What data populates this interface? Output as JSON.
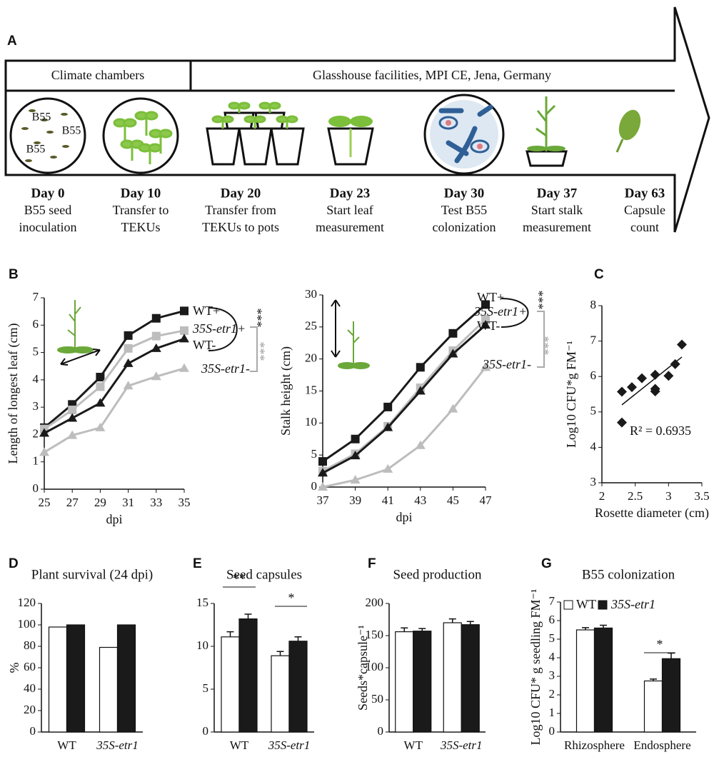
{
  "timeline": {
    "panel": "A",
    "phases": [
      "Climate chambers",
      "Glasshouse facilities, MPI CE, Jena, Germany"
    ],
    "seed_labels": [
      "B55",
      "B55",
      "B55"
    ],
    "steps": [
      {
        "day": "Day 0",
        "text": [
          "B55 seed",
          "inoculation"
        ]
      },
      {
        "day": "Day 10",
        "text": [
          "Transfer to",
          "TEKUs"
        ]
      },
      {
        "day": "Day 20",
        "text": [
          "Transfer from",
          "TEKUs to pots"
        ]
      },
      {
        "day": "Day 23",
        "text": [
          "Start leaf",
          "measurement"
        ]
      },
      {
        "day": "Day 30",
        "text": [
          "Test B55",
          "colonization"
        ]
      },
      {
        "day": "Day 37",
        "text": [
          "Start stalk",
          "measurement"
        ]
      },
      {
        "day": "Day 63",
        "text": [
          "Capsule",
          "count"
        ]
      }
    ]
  },
  "chart_data": [
    {
      "type": "line",
      "panel": "B",
      "x_label": "dpi",
      "y_label": "Length of longest leaf (cm)",
      "x": [
        25,
        27,
        29,
        31,
        33,
        35
      ],
      "xlim": [
        25,
        35
      ],
      "xticks": [
        25,
        27,
        29,
        31,
        33,
        35
      ],
      "ylim": [
        0,
        7
      ],
      "yticks": [
        0,
        1,
        2,
        3,
        4,
        5,
        6,
        7
      ],
      "series": [
        {
          "name": "WT+",
          "color": "#1a1a1a",
          "marker": "square",
          "values": [
            2.25,
            3.1,
            4.1,
            5.62,
            6.25,
            6.52
          ]
        },
        {
          "name": "35S-etr1+",
          "color": "#bdbdbd",
          "marker": "square",
          "values": [
            2.2,
            2.9,
            3.75,
            5.15,
            5.6,
            5.8
          ]
        },
        {
          "name": "WT-",
          "color": "#1a1a1a",
          "marker": "triangle",
          "values": [
            2.05,
            2.6,
            3.15,
            4.6,
            5.15,
            5.5
          ]
        },
        {
          "name": "35S-etr1-",
          "color": "#bdbdbd",
          "marker": "triangle",
          "values": [
            1.35,
            1.97,
            2.25,
            3.78,
            4.12,
            4.42
          ]
        }
      ],
      "annotations": [
        "***",
        "***"
      ]
    },
    {
      "type": "line",
      "x_label": "dpi",
      "y_label": "Stalk height (cm)",
      "x": [
        37,
        39,
        41,
        43,
        45,
        47
      ],
      "xlim": [
        37,
        47
      ],
      "xticks": [
        37,
        39,
        41,
        43,
        45,
        47
      ],
      "ylim": [
        0,
        30
      ],
      "yticks": [
        0,
        5,
        10,
        15,
        20,
        25,
        30
      ],
      "series": [
        {
          "name": "WT+",
          "color": "#1a1a1a",
          "marker": "square",
          "values": [
            4,
            7.5,
            12.5,
            18.7,
            24,
            28.5
          ]
        },
        {
          "name": "35S-etr1+",
          "color": "#bdbdbd",
          "marker": "square",
          "values": [
            2.5,
            5.2,
            9.5,
            15.5,
            21.3,
            26.2
          ]
        },
        {
          "name": "WT-",
          "color": "#1a1a1a",
          "marker": "triangle",
          "values": [
            2.2,
            4.9,
            9.3,
            15,
            20.8,
            25.3
          ]
        },
        {
          "name": "35S-etr1-",
          "color": "#bdbdbd",
          "marker": "triangle",
          "values": [
            0,
            1.1,
            2.8,
            6.5,
            12.2,
            18.7
          ]
        }
      ],
      "annotations": [
        "***",
        "***"
      ]
    },
    {
      "type": "scatter",
      "panel": "C",
      "x_label": "Rosette diameter (cm)",
      "y_label": "Log10 CFU*g FM⁻¹",
      "x": [
        2.3,
        2.3,
        2.45,
        2.6,
        2.8,
        2.8,
        2.8,
        3.0,
        3.1,
        3.2
      ],
      "values": [
        5.57,
        4.7,
        5.7,
        5.95,
        6.05,
        5.65,
        5.58,
        6.02,
        6.35,
        6.9
      ],
      "color": "#1a1a1a",
      "trendline": {
        "x": [
          2.3,
          3.2
        ],
        "values": [
          5.2,
          6.55
        ]
      },
      "xlim": [
        2,
        3.5
      ],
      "xticks": [
        2,
        2.5,
        3,
        3.5
      ],
      "ylim": [
        3,
        8
      ],
      "yticks": [
        3,
        4,
        5,
        6,
        7,
        8
      ],
      "annotations": [
        "R² = 0.6935"
      ]
    },
    {
      "type": "bar",
      "panel": "D",
      "title": "Plant survival (24 dpi)",
      "y_label": "%",
      "categories": [
        "WT",
        "35S-etr1"
      ],
      "ylim": [
        0,
        120
      ],
      "yticks": [
        0,
        20,
        40,
        60,
        80,
        100,
        120
      ],
      "series": [
        {
          "color": "#ffffff",
          "values": [
            98,
            79
          ]
        },
        {
          "color": "#1a1a1a",
          "values": [
            100,
            100
          ]
        }
      ]
    },
    {
      "type": "bar",
      "panel": "E",
      "title": "Seed capsules",
      "categories": [
        "WT",
        "35S-etr1"
      ],
      "ylim": [
        0,
        15
      ],
      "yticks": [
        0,
        5,
        10,
        15
      ],
      "series": [
        {
          "color": "#ffffff",
          "values": [
            11.1,
            8.9
          ],
          "errors": [
            0.6,
            0.5
          ]
        },
        {
          "color": "#1a1a1a",
          "values": [
            13.2,
            10.6
          ],
          "errors": [
            0.55,
            0.5
          ]
        }
      ],
      "annotations": [
        "**",
        "*"
      ]
    },
    {
      "type": "bar",
      "panel": "F",
      "title": "Seed production",
      "y_label": "Seeds*capsule⁻¹",
      "categories": [
        "WT",
        "35S-etr1"
      ],
      "ylim": [
        0,
        200
      ],
      "yticks": [
        0,
        50,
        100,
        150,
        200
      ],
      "series": [
        {
          "color": "#ffffff",
          "values": [
            156,
            170
          ],
          "errors": [
            6,
            6
          ]
        },
        {
          "color": "#1a1a1a",
          "values": [
            157,
            167
          ],
          "errors": [
            4,
            5
          ]
        }
      ]
    },
    {
      "type": "bar",
      "panel": "G",
      "title": "B55 colonization",
      "y_label": "Log10 CFU* g seedling FM⁻¹",
      "categories": [
        "Rhizosphere",
        "Endosphere"
      ],
      "ylim": [
        0,
        7
      ],
      "yticks": [
        0,
        1,
        2,
        3,
        4,
        5,
        6,
        7
      ],
      "series": [
        {
          "name": "WT",
          "color": "#ffffff",
          "values": [
            5.5,
            2.75
          ],
          "errors": [
            0.12,
            0.1
          ]
        },
        {
          "name": "35S-etr1",
          "color": "#1a1a1a",
          "values": [
            5.6,
            3.95
          ],
          "errors": [
            0.15,
            0.3
          ]
        }
      ],
      "annotations": [
        "*"
      ]
    }
  ]
}
